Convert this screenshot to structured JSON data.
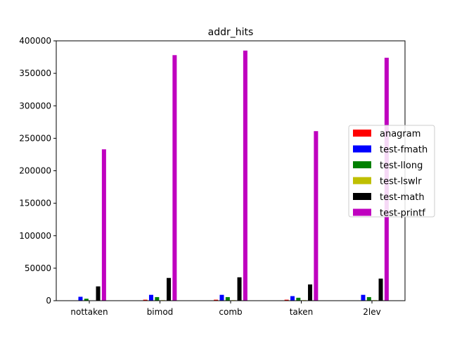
{
  "chart_data": {
    "type": "bar",
    "title": "addr_hits",
    "xlabel": "",
    "ylabel": "",
    "categories": [
      "nottaken",
      "bimod",
      "comb",
      "taken",
      "2lev"
    ],
    "ylim": [
      0,
      400000
    ],
    "yticks": [
      0,
      50000,
      100000,
      150000,
      200000,
      250000,
      300000,
      350000,
      400000
    ],
    "ytick_labels": [
      "0",
      "50000",
      "100000",
      "150000",
      "200000",
      "250000",
      "300000",
      "350000",
      "400000"
    ],
    "grid": false,
    "legend_position": "right",
    "series": [
      {
        "name": "anagram",
        "color": "#ff0000",
        "values": [
          300,
          1500,
          1500,
          1500,
          300
        ]
      },
      {
        "name": "test-fmath",
        "color": "#0000ff",
        "values": [
          6000,
          9000,
          9000,
          7000,
          9000
        ]
      },
      {
        "name": "test-llong",
        "color": "#008000",
        "values": [
          3000,
          5500,
          5500,
          4500,
          5500
        ]
      },
      {
        "name": "test-lswlr",
        "color": "#bfbf00",
        "values": [
          400,
          800,
          800,
          800,
          800
        ]
      },
      {
        "name": "test-math",
        "color": "#000000",
        "values": [
          22000,
          35000,
          36000,
          25000,
          34000
        ]
      },
      {
        "name": "test-printf",
        "color": "#bf00bf",
        "values": [
          233000,
          378000,
          385000,
          261000,
          374000
        ]
      }
    ]
  }
}
